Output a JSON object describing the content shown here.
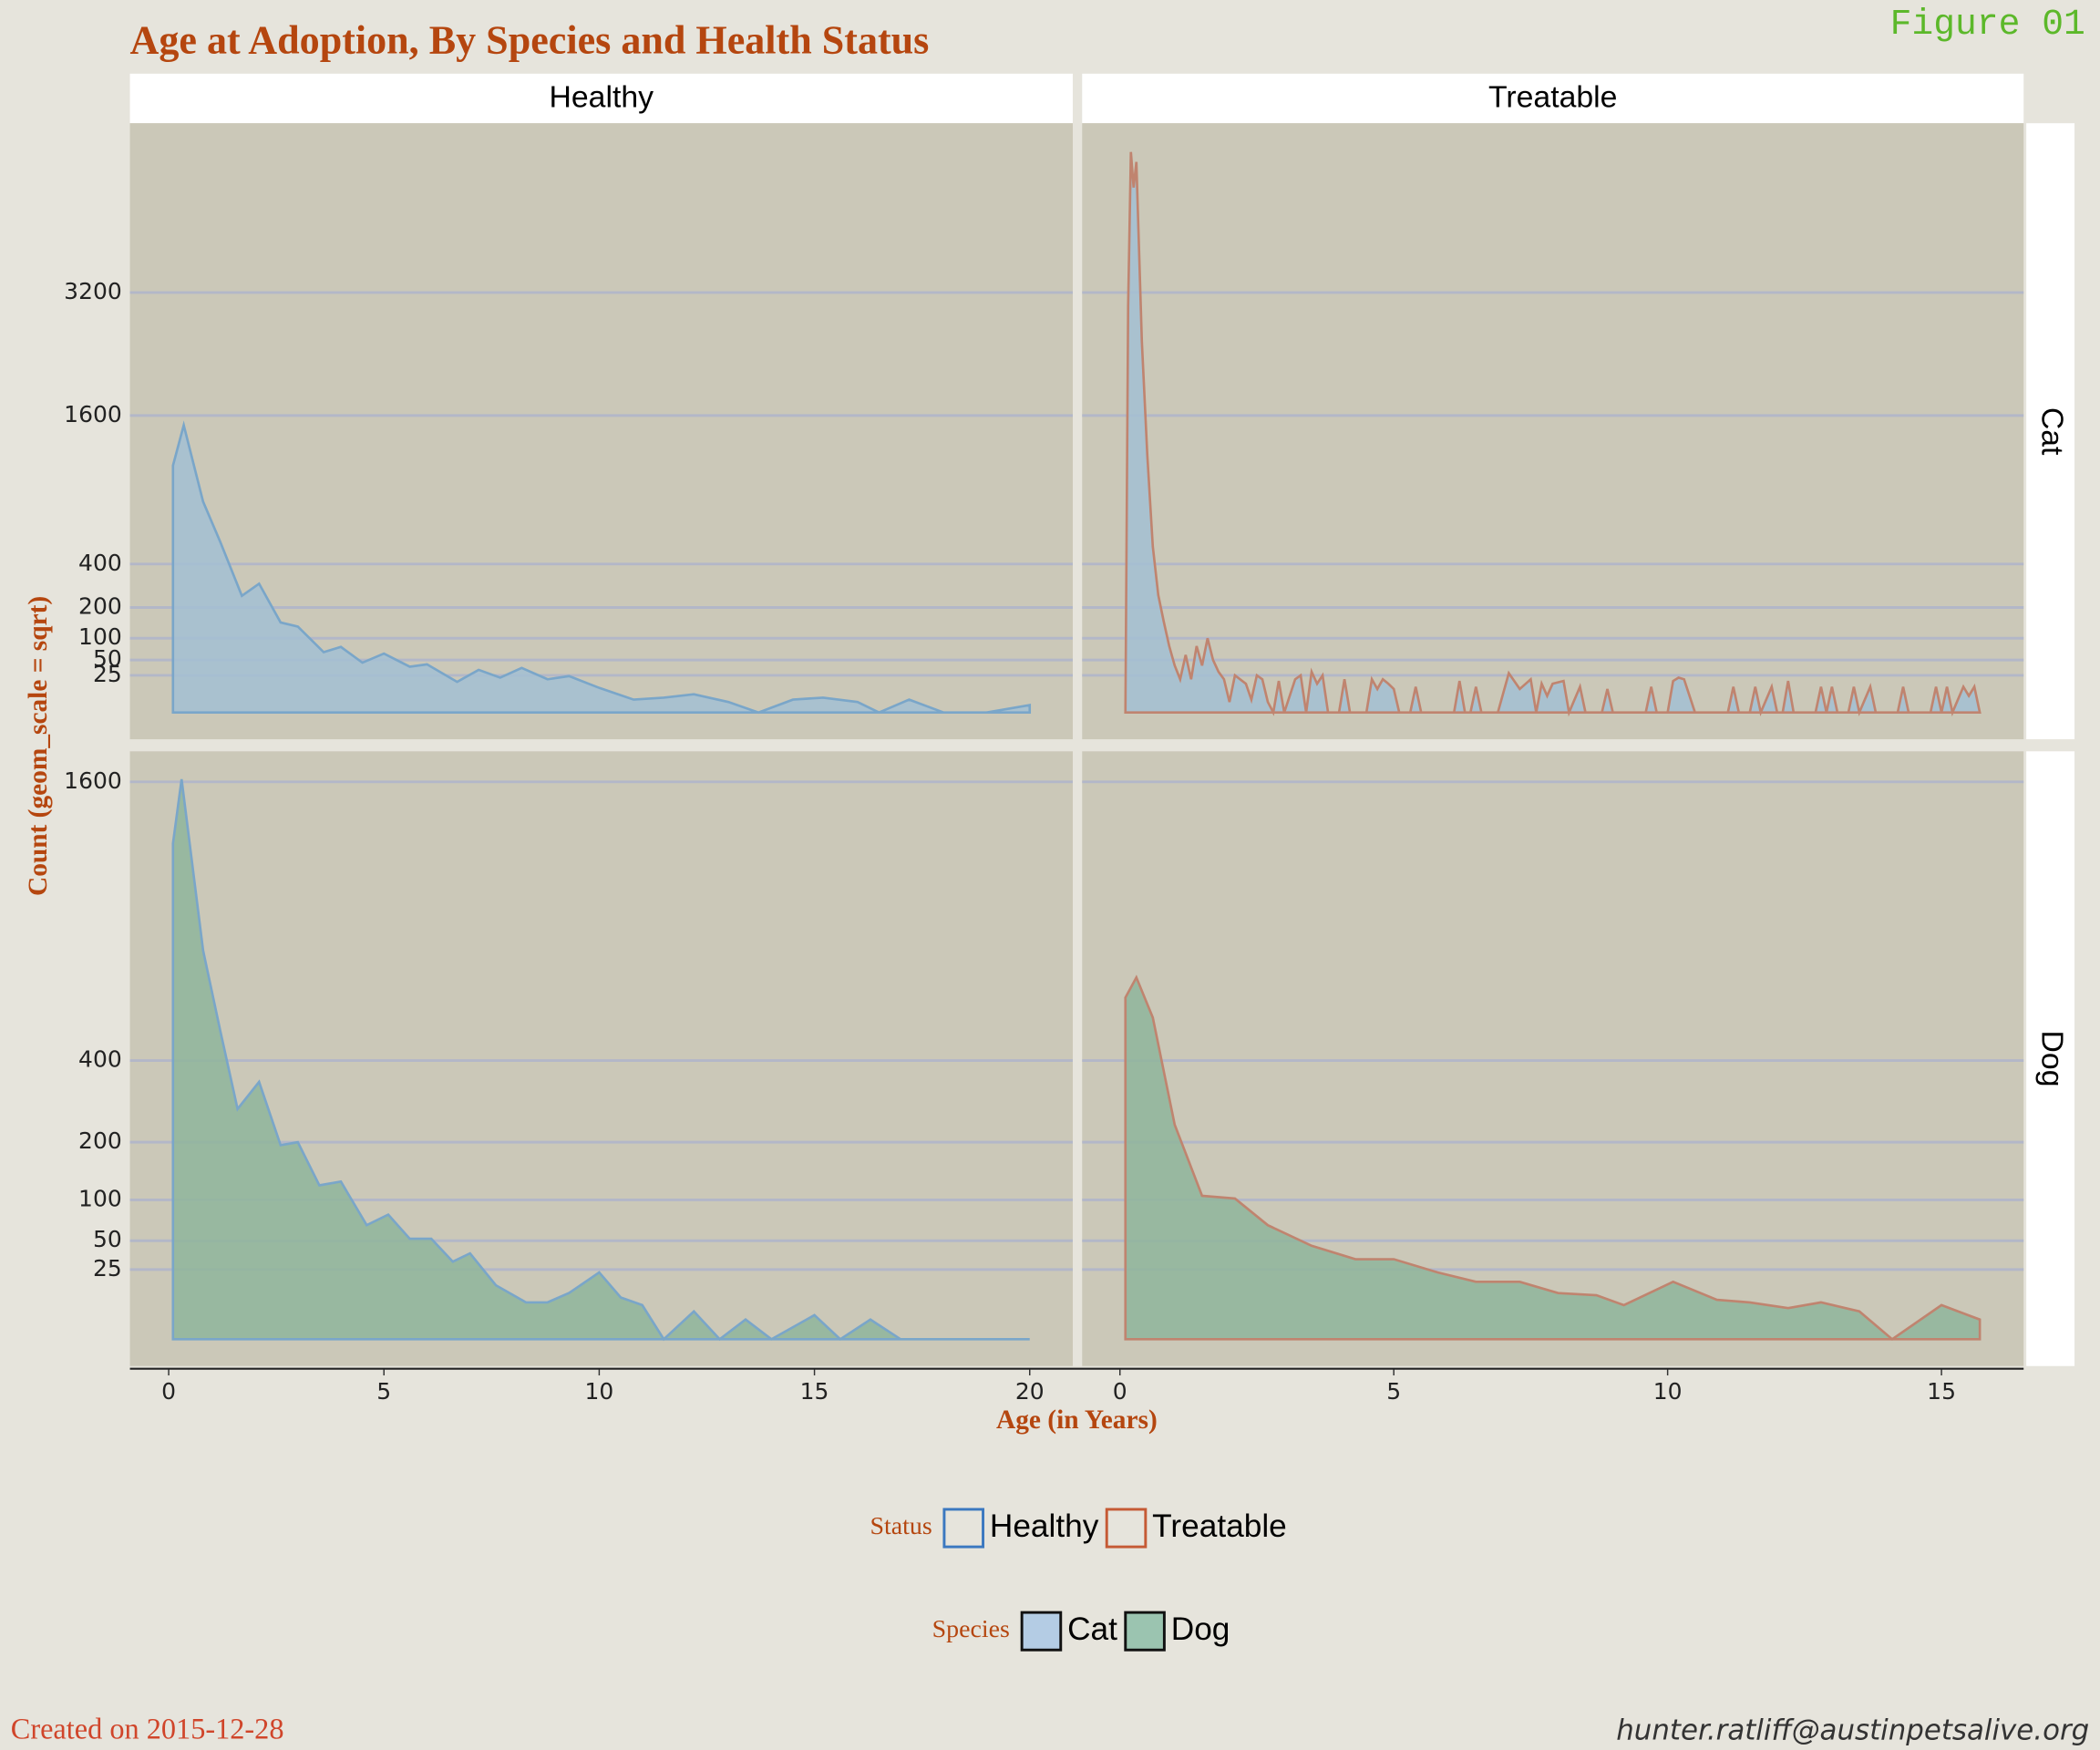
{
  "title": "Age at Adoption, By Species and Health Status",
  "figure_label": "Figure 01",
  "facets": {
    "columns": [
      "Healthy",
      "Treatable"
    ],
    "rows": [
      "Cat",
      "Dog"
    ]
  },
  "x_axis_label": "Age (in Years)",
  "y_axis_label": "Count (geom_scale = sqrt)",
  "legend": [
    {
      "title": "Status",
      "kind": "outline",
      "items": [
        {
          "name": "Healthy",
          "color": "#3b78c0"
        },
        {
          "name": "Treatable",
          "color": "#c55a35"
        }
      ]
    },
    {
      "title": "Species",
      "kind": "fill",
      "items": [
        {
          "name": "Cat",
          "color": "#b4cce4"
        },
        {
          "name": "Dog",
          "color": "#9bc4b0"
        }
      ]
    }
  ],
  "footer_left": "Created on 2015-12-28",
  "footer_right": "hunter.ratliff@austinpetsalive.org",
  "chart_data": [
    {
      "type": "area",
      "y_scale": "sqrt",
      "grid": true,
      "fill": "#a3bfd2",
      "stroke": "#7aa6c9",
      "xlim": [
        -0.9,
        21
      ],
      "ylim": [
        0,
        6300
      ],
      "yticks": [
        25,
        50,
        100,
        200,
        400,
        1600,
        3200
      ],
      "x": [
        0.1,
        0.35,
        0.8,
        1.2,
        1.7,
        2.1,
        2.6,
        3.0,
        3.6,
        4.0,
        4.5,
        5.0,
        5.6,
        6.0,
        6.7,
        7.2,
        7.7,
        8.2,
        8.8,
        9.3,
        10.0,
        10.8,
        11.5,
        12.2,
        13.0,
        13.7,
        14.5,
        15.2,
        16.0,
        16.5,
        17.2,
        18.0,
        19.0,
        20.0
      ],
      "values": [
        1107,
        1497,
        806,
        527,
        247,
        301,
        147,
        134,
        66,
        78,
        45,
        63,
        38,
        42,
        17,
        33,
        22,
        36,
        20,
        24,
        11,
        3,
        4,
        6,
        2,
        0,
        3,
        4,
        2,
        0,
        3,
        0,
        0,
        1
      ]
    },
    {
      "type": "area",
      "y_scale": "sqrt",
      "grid": true,
      "fill": "#a3bfd2",
      "stroke": "#c0846f",
      "xlim": [
        -0.69,
        16.5
      ],
      "ylim": [
        0,
        6300
      ],
      "x": [
        0.1,
        0.15,
        0.2,
        0.25,
        0.3,
        0.4,
        0.5,
        0.6,
        0.7,
        0.8,
        0.9,
        1.0,
        1.1,
        1.2,
        1.3,
        1.4,
        1.5,
        1.6,
        1.7,
        1.8,
        1.9,
        2.0,
        2.1,
        2.3,
        2.4,
        2.5,
        2.6,
        2.7,
        2.8,
        2.9,
        3.0,
        3.2,
        3.3,
        3.4,
        3.5,
        3.6,
        3.7,
        3.8,
        4.0,
        4.1,
        4.2,
        4.5,
        4.6,
        4.7,
        4.8,
        4.9,
        5.0,
        5.1,
        5.3,
        5.4,
        5.5,
        6.1,
        6.2,
        6.3,
        6.4,
        6.5,
        6.6,
        6.9,
        7.1,
        7.3,
        7.5,
        7.6,
        7.7,
        7.8,
        7.9,
        8.1,
        8.2,
        8.4,
        8.5,
        8.8,
        8.9,
        9.0,
        9.6,
        9.7,
        9.8,
        10.0,
        10.1,
        10.2,
        10.3,
        10.5,
        11.1,
        11.2,
        11.3,
        11.5,
        11.6,
        11.7,
        11.9,
        12.0,
        12.1,
        12.2,
        12.3,
        12.7,
        12.8,
        12.9,
        13.0,
        13.1,
        13.3,
        13.4,
        13.5,
        13.7,
        13.8,
        14.2,
        14.3,
        14.4,
        14.8,
        14.9,
        15.0,
        15.1,
        15.2,
        15.4,
        15.5,
        15.6,
        15.7
      ],
      "values": [
        0,
        3000,
        5700,
        5000,
        5500,
        2500,
        1200,
        500,
        250,
        150,
        80,
        40,
        20,
        60,
        20,
        80,
        40,
        100,
        50,
        30,
        20,
        2,
        25,
        15,
        3,
        25,
        20,
        2,
        0,
        18,
        0,
        20,
        25,
        0,
        30,
        15,
        25,
        0,
        0,
        20,
        0,
        0,
        20,
        10,
        20,
        15,
        10,
        0,
        0,
        12,
        0,
        0,
        18,
        0,
        0,
        12,
        0,
        0,
        28,
        10,
        20,
        0,
        15,
        5,
        15,
        18,
        0,
        12,
        0,
        0,
        10,
        0,
        0,
        12,
        0,
        0,
        18,
        22,
        20,
        0,
        0,
        12,
        0,
        0,
        12,
        0,
        12,
        0,
        0,
        18,
        0,
        0,
        12,
        0,
        12,
        0,
        0,
        12,
        0,
        12,
        0,
        0,
        12,
        0,
        0,
        12,
        0,
        12,
        0,
        12,
        5,
        12,
        0
      ]
    },
    {
      "type": "area",
      "y_scale": "sqrt",
      "grid": true,
      "fill": "#8fb59b",
      "stroke": "#7aa6c9",
      "xlim": [
        -0.9,
        21
      ],
      "xticks": [
        0,
        5,
        10,
        15,
        20
      ],
      "ylim": [
        0,
        1780
      ],
      "yticks": [
        25,
        50,
        100,
        200,
        400,
        1600
      ],
      "x": [
        0.1,
        0.3,
        0.8,
        1.2,
        1.6,
        2.1,
        2.6,
        3.0,
        3.5,
        4.0,
        4.6,
        5.1,
        5.6,
        6.1,
        6.6,
        7.0,
        7.6,
        8.3,
        8.8,
        9.3,
        10.0,
        10.5,
        11.0,
        11.5,
        12.2,
        12.8,
        13.4,
        14.0,
        15.0,
        15.6,
        16.3,
        17.0,
        20.0
      ],
      "values": [
        1266,
        1615,
        778,
        489,
        273,
        341,
        194,
        200,
        122,
        128,
        67,
        80,
        52,
        52,
        31,
        38,
        15,
        7,
        7,
        11,
        23,
        9,
        6,
        0,
        4,
        0,
        2,
        0,
        3,
        0,
        2,
        0,
        0
      ]
    },
    {
      "type": "area",
      "y_scale": "sqrt",
      "grid": true,
      "fill": "#8fb59b",
      "stroke": "#c0846f",
      "xlim": [
        -0.69,
        16.5
      ],
      "xticks": [
        0,
        5,
        10,
        15
      ],
      "ylim": [
        0,
        1780
      ],
      "x": [
        0.1,
        0.3,
        0.6,
        1.0,
        1.5,
        2.1,
        2.7,
        3.5,
        4.3,
        5.0,
        5.8,
        6.5,
        7.3,
        8.0,
        8.7,
        9.2,
        10.1,
        10.9,
        11.5,
        12.2,
        12.8,
        13.5,
        14.1,
        15.0,
        15.7
      ],
      "values": [
        601,
        674,
        533,
        237,
        106,
        102,
        67,
        45,
        33,
        33,
        23,
        17,
        17,
        11,
        10,
        6,
        17,
        8,
        7,
        5,
        7,
        4,
        0,
        6,
        2
      ]
    }
  ]
}
